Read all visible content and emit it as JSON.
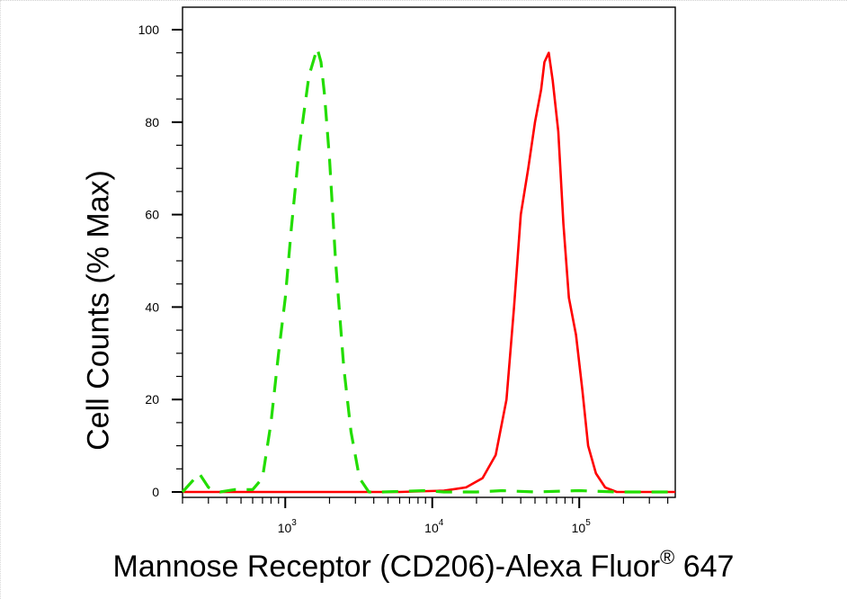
{
  "chart_data": {
    "type": "line",
    "title": "",
    "xlabel": {
      "text": "Mannose Receptor (CD206)-Alexa Fluor",
      "registered_mark": "®",
      "suffix": " 647"
    },
    "ylabel": "Cell Counts (% Max)",
    "x_scale": "log",
    "xlim": [
      200,
      450000
    ],
    "ylim": [
      0,
      106
    ],
    "grid": false,
    "legend": "none",
    "y_ticks": [
      0,
      20,
      40,
      60,
      80,
      100
    ],
    "y_tick_labels": [
      "0",
      "20",
      "40",
      "60",
      "80",
      "100"
    ],
    "x_ticks": [
      1000,
      10000,
      100000
    ],
    "x_tick_labels": [
      {
        "base": "10",
        "exp": "3"
      },
      {
        "base": "10",
        "exp": "4"
      },
      {
        "base": "10",
        "exp": "5"
      }
    ],
    "series": [
      {
        "color": "#ff0000",
        "style": "solid",
        "x": [
          200,
          6000,
          12000,
          17000,
          22000,
          27000,
          32000,
          36000,
          40000,
          45000,
          50000,
          55000,
          58000,
          62000,
          66000,
          72000,
          78000,
          85000,
          95000,
          105000,
          115000,
          130000,
          150000,
          180000,
          220000,
          450000
        ],
        "y": [
          0,
          0,
          0.3,
          1,
          3,
          8,
          20,
          40,
          60,
          70,
          80,
          87,
          93,
          95,
          89,
          78,
          58,
          42,
          34,
          22,
          10,
          4,
          1,
          0,
          0,
          0
        ]
      },
      {
        "color": "#22dd00",
        "style": "dashed",
        "x": [
          200,
          260,
          300,
          360,
          450,
          600,
          700,
          800,
          900,
          1000,
          1100,
          1250,
          1450,
          1650,
          1750,
          1850,
          2000,
          2200,
          2500,
          2800,
          3200,
          3700,
          4500,
          9000,
          12000,
          20000,
          30000,
          50000,
          100000,
          180000,
          450000
        ],
        "y": [
          0,
          4,
          1,
          0,
          0.5,
          0.5,
          3,
          15,
          30,
          42,
          57,
          75,
          90,
          96,
          93,
          86,
          72,
          50,
          27,
          13,
          3,
          0,
          0,
          0.3,
          0,
          0,
          0.3,
          0,
          0.3,
          0,
          0
        ]
      }
    ]
  }
}
